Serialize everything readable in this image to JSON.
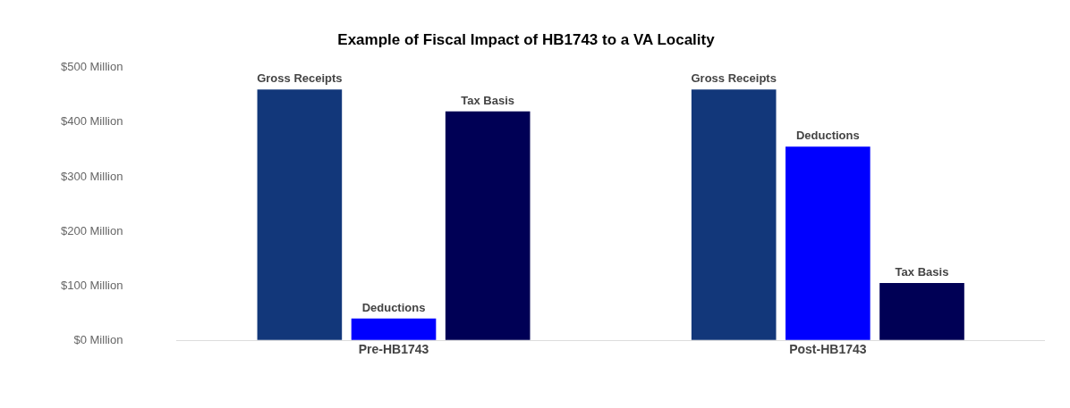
{
  "chart_data": {
    "type": "bar",
    "title": "Example of Fiscal Impact of HB1743 to a VA Locality",
    "categories": [
      "Pre-HB1743",
      "Post-HB1743"
    ],
    "series": [
      {
        "name": "Gross Receipts",
        "color": "#12377a",
        "values": [
          460,
          460
        ]
      },
      {
        "name": "Deductions",
        "color": "#0000ff",
        "values": [
          40,
          355
        ]
      },
      {
        "name": "Tax Basis",
        "color": "#000055",
        "values": [
          420,
          105
        ]
      }
    ],
    "ylim": [
      0,
      500
    ],
    "yticks": [
      {
        "value": 0,
        "label": "$0 Million"
      },
      {
        "value": 100,
        "label": "$100 Million"
      },
      {
        "value": 200,
        "label": "$200 Million"
      },
      {
        "value": 300,
        "label": "$300 Million"
      },
      {
        "value": 400,
        "label": "$400 Million"
      },
      {
        "value": 500,
        "label": "$500 Million"
      }
    ],
    "grid": false,
    "legend": false
  }
}
